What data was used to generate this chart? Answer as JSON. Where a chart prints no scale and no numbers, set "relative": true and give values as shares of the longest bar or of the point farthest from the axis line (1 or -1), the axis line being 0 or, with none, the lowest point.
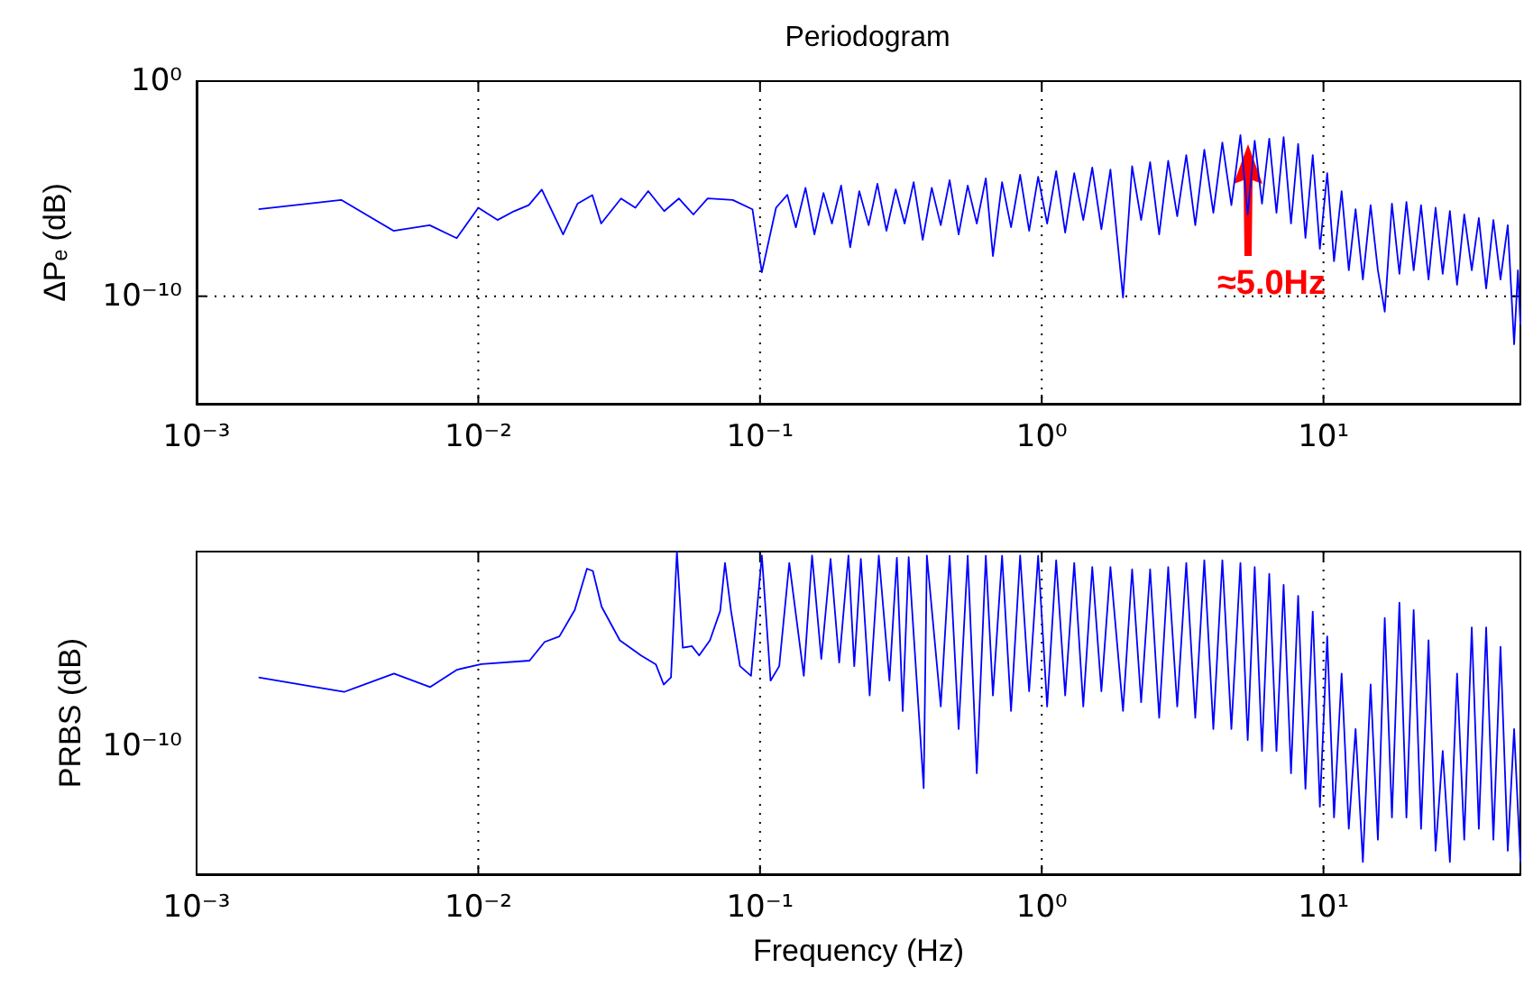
{
  "chart_data": [
    {
      "type": "line",
      "title": "Periodogram",
      "ylabel": "ΔPₑ (dB)",
      "log": "xy",
      "grid": true,
      "xlim": [
        0.001,
        50
      ],
      "ylim": [
        1e-15,
        1
      ],
      "xticks": [
        {
          "value": 0.001,
          "label": "10⁻³"
        },
        {
          "value": 0.01,
          "label": "10⁻²"
        },
        {
          "value": 0.1,
          "label": "10⁻¹"
        },
        {
          "value": 1,
          "label": "10⁰"
        },
        {
          "value": 10,
          "label": "10¹"
        }
      ],
      "yticks": [
        {
          "value": 1e-10,
          "label": "10⁻¹⁰"
        },
        {
          "value": 1,
          "label": "10⁰"
        }
      ],
      "annotations": [
        "≈5.0Hz"
      ],
      "series": [
        {
          "color": "#0000ff",
          "x": [
            0.00166,
            0.00326,
            0.005,
            0.00672,
            0.00838,
            0.01,
            0.0117,
            0.0134,
            0.0151,
            0.0168,
            0.02,
            0.0225,
            0.0254,
            0.0273,
            0.0321,
            0.0361,
            0.0401,
            0.0457,
            0.0515,
            0.058,
            0.0652,
            0.08,
            0.094,
            0.1015,
            0.114,
            0.125,
            0.134,
            0.145,
            0.156,
            0.168,
            0.18,
            0.194,
            0.209,
            0.225,
            0.243,
            0.261,
            0.281,
            0.303,
            0.326,
            0.351,
            0.378,
            0.407,
            0.438,
            0.471,
            0.507,
            0.546,
            0.588,
            0.633,
            0.671,
            0.723,
            0.778,
            0.838,
            0.902,
            0.971,
            1.045,
            1.125,
            1.211,
            1.304,
            1.404,
            1.511,
            1.628,
            1.753,
            1.943,
            2.093,
            2.253,
            2.425,
            2.611,
            2.811,
            3.026,
            3.258,
            3.507,
            3.776,
            4.065,
            4.376,
            4.711,
            5.072,
            5.383,
            5.7,
            6.05,
            6.42,
            6.81,
            7.22,
            7.67,
            8.13,
            8.63,
            9.16,
            9.71,
            10.31,
            10.9,
            11.6,
            12.3,
            13,
            13.8,
            14.7,
            15.6,
            16.5,
            17.5,
            18.6,
            19.7,
            20.9,
            22.2,
            23.6,
            25,
            26.5,
            28.1,
            29.8,
            31.6,
            33.6,
            35.6,
            37.8,
            40.1,
            42.5,
            45.1,
            47.5,
            49,
            50
          ],
          "values": [
            1.1e-06,
            3e-06,
            1.1e-07,
            2e-07,
            5e-08,
            1.3e-06,
            3.5e-07,
            9e-07,
            1.7e-06,
            9e-06,
            7.5e-08,
            2e-06,
            5e-06,
            2.4e-07,
            3.5e-06,
            1.3e-06,
            7.7e-06,
            9e-07,
            3.5e-06,
            6.3e-07,
            3.5e-06,
            3e-06,
            1.1e-06,
            1.3e-09,
            1.3e-06,
            5.2e-06,
            1.6e-07,
            1.1e-05,
            7.5e-08,
            6.3e-06,
            2.4e-07,
            1.4e-05,
            1.9e-08,
            7.7e-06,
            2e-07,
            1.7e-05,
            1.1e-07,
            9.3e-06,
            2.4e-07,
            2e-05,
            4.2e-08,
            1.1e-05,
            2e-07,
            2.5e-05,
            7.5e-08,
            1.4e-05,
            2.4e-07,
            3e-05,
            7.4e-09,
            2e-05,
            1.6e-07,
            4.4e-05,
            1.1e-07,
            3.6e-05,
            2.4e-07,
            6.5e-05,
            9.1e-08,
            5.3e-05,
            3.5e-07,
            9.5e-05,
            1.3e-07,
            7.8e-05,
            8.7e-11,
            0.00011,
            3.5e-07,
            0.00017,
            7.5e-08,
            0.0002,
            5.2e-07,
            0.00036,
            2e-07,
            0.00065,
            7.6e-07,
            0.0014,
            1.7e-06,
            0.0031,
            6.3e-07,
            0.0017,
            2e-06,
            0.0021,
            7.6e-07,
            0.0025,
            2.4e-07,
            0.0012,
            5.1e-08,
            0.00036,
            1.6e-08,
            5.3e-05,
            4.2e-09,
            7.7e-06,
            1.6e-09,
            1.1e-06,
            6e-10,
            1.7e-06,
            1.6e-09,
            1.9e-11,
            2e-06,
            1.1e-09,
            2.4e-06,
            1.6e-09,
            1.7e-06,
            6e-10,
            1.3e-06,
            1.1e-09,
            9.2e-07,
            3.4e-10,
            6.3e-07,
            1.6e-09,
            4.3e-07,
            2.3e-10,
            3.5e-07,
            6e-10,
            2e-07,
            5.8e-13,
            1.6e-09,
            4.8e-12
          ]
        }
      ]
    },
    {
      "type": "line",
      "xlabel": "Frequency (Hz)",
      "ylabel": "PRBS (dB)",
      "log": "x",
      "relative": true,
      "xlim": [
        0.001,
        50
      ],
      "xticks": [
        {
          "value": 0.001,
          "label": "10⁻³"
        },
        {
          "value": 0.01,
          "label": "10⁻²"
        },
        {
          "value": 0.1,
          "label": "10⁻¹"
        },
        {
          "value": 1,
          "label": "10⁰"
        },
        {
          "value": 10,
          "label": "10¹"
        }
      ],
      "grid": "x",
      "annotations": [
        "10⁻¹⁰"
      ],
      "series": [
        {
          "color": "#0000ff",
          "x": [
            0.00166,
            0.00334,
            0.00502,
            0.00675,
            0.00841,
            0.01025,
            0.0152,
            0.0172,
            0.0194,
            0.022,
            0.0243,
            0.0255,
            0.0274,
            0.0318,
            0.0378,
            0.0427,
            0.0455,
            0.0483,
            0.0507,
            0.0532,
            0.0573,
            0.0608,
            0.0664,
            0.0722,
            0.0751,
            0.0789,
            0.0849,
            0.0929,
            0.1015,
            0.109,
            0.117,
            0.127,
            0.143,
            0.153,
            0.165,
            0.178,
            0.191,
            0.206,
            0.216,
            0.228,
            0.245,
            0.264,
            0.288,
            0.306,
            0.321,
            0.337,
            0.381,
            0.391,
            0.438,
            0.471,
            0.507,
            0.546,
            0.588,
            0.633,
            0.671,
            0.723,
            0.778,
            0.838,
            0.902,
            0.971,
            1.045,
            1.125,
            1.211,
            1.304,
            1.404,
            1.511,
            1.628,
            1.753,
            1.943,
            2.093,
            2.253,
            2.425,
            2.611,
            2.811,
            3.026,
            3.258,
            3.507,
            3.776,
            4.065,
            4.376,
            4.711,
            5.072,
            5.383,
            5.7,
            6.05,
            6.42,
            6.81,
            7.22,
            7.67,
            8.13,
            8.63,
            9.16,
            9.71,
            10.31,
            10.9,
            11.6,
            12.3,
            13,
            13.8,
            14.7,
            15.6,
            16.5,
            17.5,
            18.6,
            19.7,
            20.9,
            22.2,
            23.6,
            25,
            26.5,
            28.1,
            29.8,
            31.6,
            33.6,
            35.6,
            37.8,
            40.1,
            42.5,
            45.1,
            47.5,
            50
          ],
          "values": [
            0.61,
            0.565,
            0.622,
            0.58,
            0.634,
            0.651,
            0.662,
            0.72,
            0.737,
            0.819,
            0.947,
            0.94,
            0.829,
            0.725,
            0.678,
            0.65,
            0.588,
            0.61,
            1,
            0.702,
            0.707,
            0.678,
            0.725,
            0.816,
            0.965,
            0.816,
            0.645,
            0.615,
            0.988,
            0.6,
            0.645,
            0.965,
            0.615,
            0.988,
            0.667,
            0.977,
            0.656,
            0.988,
            0.645,
            0.977,
            0.554,
            0.988,
            0.6,
            0.981,
            0.506,
            0.983,
            0.267,
            0.988,
            0.52,
            0.987,
            0.45,
            0.987,
            0.313,
            0.987,
            0.554,
            0.987,
            0.506,
            0.988,
            0.567,
            0.987,
            0.52,
            0.973,
            0.554,
            0.965,
            0.52,
            0.952,
            0.567,
            0.952,
            0.506,
            0.945,
            0.533,
            0.945,
            0.485,
            0.952,
            0.52,
            0.965,
            0.485,
            0.973,
            0.45,
            0.973,
            0.45,
            0.965,
            0.416,
            0.952,
            0.382,
            0.931,
            0.382,
            0.897,
            0.313,
            0.863,
            0.265,
            0.814,
            0.209,
            0.737,
            0.176,
            0.622,
            0.141,
            0.45,
            0.038,
            0.588,
            0.107,
            0.794,
            0.176,
            0.842,
            0.176,
            0.819,
            0.141,
            0.725,
            0.073,
            0.382,
            0.038,
            0.622,
            0.107,
            0.765,
            0.141,
            0.765,
            0.107,
            0.705,
            0.073,
            0.45,
            0.038
          ]
        }
      ]
    }
  ]
}
